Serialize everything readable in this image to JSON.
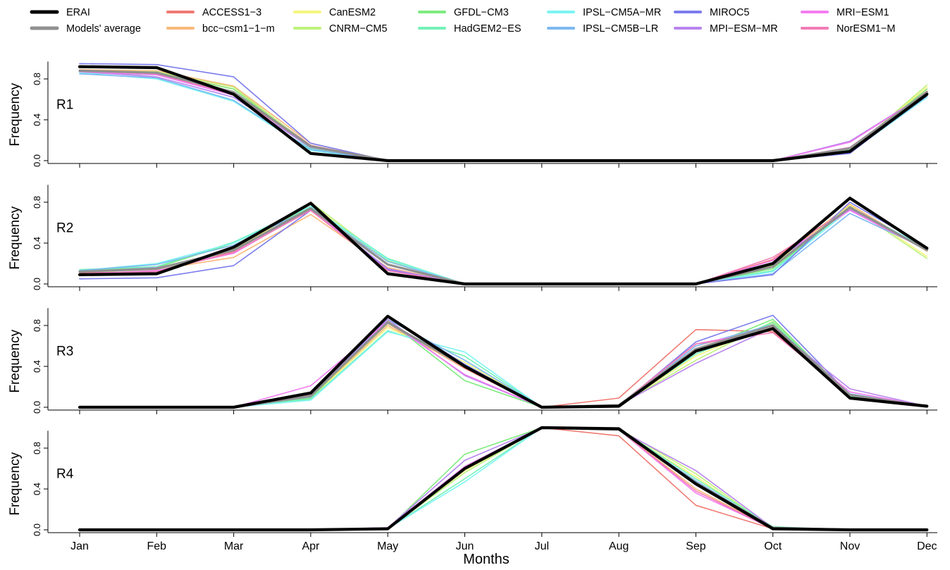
{
  "legend": {
    "items": [
      {
        "name": "ERAI",
        "color": "#000000"
      },
      {
        "name": "Models' average",
        "color": "#909090"
      },
      {
        "name": "ACCESS1−3",
        "color": "#F07A72"
      },
      {
        "name": "bcc−csm1−1−m",
        "color": "#F8B87A"
      },
      {
        "name": "CanESM2",
        "color": "#F6F67E"
      },
      {
        "name": "CNRM−CM5",
        "color": "#BEF27A"
      },
      {
        "name": "GFDL−CM3",
        "color": "#7EEB7E"
      },
      {
        "name": "HadGEM2−ES",
        "color": "#74F2B6"
      },
      {
        "name": "IPSL−CM5A−MR",
        "color": "#7EF4F4"
      },
      {
        "name": "IPSL−CM5B−LR",
        "color": "#7CB8F0"
      },
      {
        "name": "MIROC5",
        "color": "#7C7CEE"
      },
      {
        "name": "MPI−ESM−MR",
        "color": "#B884EE"
      },
      {
        "name": "MRI−ESM1",
        "color": "#F47CF2"
      },
      {
        "name": "NorESM1−M",
        "color": "#F27CB6"
      }
    ]
  },
  "chart_data": {
    "type": "line",
    "xlabel": "Months",
    "ylabel": "Frequency",
    "categories": [
      "Jan",
      "Feb",
      "Mar",
      "Apr",
      "May",
      "Jun",
      "Jul",
      "Aug",
      "Sep",
      "Oct",
      "Nov",
      "Dec"
    ],
    "ylim": [
      0,
      1
    ],
    "yticks": [
      "0.0",
      "0.4",
      "0.8"
    ],
    "grid": false,
    "legend_position": "top",
    "panels": [
      {
        "label": "R1",
        "series": [
          {
            "name": "ACCESS1−3",
            "values": [
              0.88,
              0.87,
              0.7,
              0.15,
              0,
              0,
              0,
              0,
              0,
              0,
              0.12,
              0.68
            ]
          },
          {
            "name": "bcc−csm1−1−m",
            "values": [
              0.89,
              0.88,
              0.73,
              0.17,
              0,
              0,
              0,
              0,
              0,
              0,
              0.11,
              0.7
            ]
          },
          {
            "name": "CanESM2",
            "values": [
              0.87,
              0.86,
              0.7,
              0.14,
              0,
              0,
              0,
              0,
              0,
              0,
              0.1,
              0.72
            ]
          },
          {
            "name": "CNRM−CM5",
            "values": [
              0.88,
              0.87,
              0.72,
              0.14,
              0,
              0,
              0,
              0,
              0,
              0,
              0.09,
              0.74
            ]
          },
          {
            "name": "GFDL−CM3",
            "values": [
              0.87,
              0.86,
              0.7,
              0.13,
              0,
              0,
              0,
              0,
              0,
              0,
              0.1,
              0.7
            ]
          },
          {
            "name": "HadGEM2−ES",
            "values": [
              0.86,
              0.84,
              0.66,
              0.12,
              0,
              0,
              0,
              0,
              0,
              0,
              0.11,
              0.66
            ]
          },
          {
            "name": "IPSL−CM5A−MR",
            "values": [
              0.86,
              0.8,
              0.58,
              0.1,
              0,
              0,
              0,
              0,
              0,
              0,
              0.08,
              0.62
            ]
          },
          {
            "name": "IPSL−CM5B−LR",
            "values": [
              0.85,
              0.81,
              0.59,
              0.11,
              0,
              0,
              0,
              0,
              0,
              0,
              0.08,
              0.63
            ]
          },
          {
            "name": "MIROC5",
            "values": [
              0.95,
              0.94,
              0.82,
              0.17,
              0,
              0,
              0,
              0,
              0,
              0,
              0.07,
              0.65
            ]
          },
          {
            "name": "MPI−ESM−MR",
            "values": [
              0.87,
              0.82,
              0.62,
              0.13,
              0,
              0,
              0,
              0,
              0,
              0,
              0.19,
              0.66
            ]
          },
          {
            "name": "MRI−ESM1",
            "values": [
              0.87,
              0.84,
              0.64,
              0.14,
              0,
              0,
              0,
              0,
              0,
              0,
              0.18,
              0.66
            ]
          },
          {
            "name": "NorESM1−M",
            "values": [
              0.88,
              0.85,
              0.65,
              0.14,
              0,
              0,
              0,
              0,
              0,
              0,
              0.13,
              0.67
            ]
          },
          {
            "name": "Models' average",
            "values": [
              0.88,
              0.86,
              0.67,
              0.14,
              0,
              0,
              0,
              0,
              0,
              0,
              0.12,
              0.67
            ]
          },
          {
            "name": "ERAI",
            "values": [
              0.92,
              0.91,
              0.65,
              0.07,
              0,
              0,
              0,
              0,
              0,
              0,
              0.09,
              0.65
            ]
          }
        ]
      },
      {
        "label": "R2",
        "series": [
          {
            "name": "ACCESS1−3",
            "values": [
              0.11,
              0.13,
              0.32,
              0.75,
              0.14,
              0,
              0,
              0,
              0,
              0.24,
              0.76,
              0.33
            ]
          },
          {
            "name": "bcc−csm1−1−m",
            "values": [
              0.12,
              0.14,
              0.26,
              0.68,
              0.16,
              0,
              0,
              0,
              0,
              0.2,
              0.78,
              0.32
            ]
          },
          {
            "name": "CanESM2",
            "values": [
              0.1,
              0.12,
              0.33,
              0.78,
              0.22,
              0,
              0,
              0,
              0,
              0.19,
              0.77,
              0.27
            ]
          },
          {
            "name": "CNRM−CM5",
            "values": [
              0.12,
              0.13,
              0.34,
              0.8,
              0.23,
              0,
              0,
              0,
              0,
              0.18,
              0.76,
              0.25
            ]
          },
          {
            "name": "GFDL−CM3",
            "values": [
              0.13,
              0.16,
              0.4,
              0.75,
              0.24,
              0,
              0,
              0,
              0,
              0.15,
              0.74,
              0.33
            ]
          },
          {
            "name": "HadGEM2−ES",
            "values": [
              0.14,
              0.17,
              0.41,
              0.76,
              0.25,
              0,
              0,
              0,
              0,
              0.13,
              0.75,
              0.35
            ]
          },
          {
            "name": "IPSL−CM5A−MR",
            "values": [
              0.13,
              0.2,
              0.4,
              0.76,
              0.24,
              0,
              0,
              0,
              0,
              0.12,
              0.73,
              0.36
            ]
          },
          {
            "name": "IPSL−CM5B−LR",
            "values": [
              0.13,
              0.19,
              0.38,
              0.74,
              0.22,
              0,
              0,
              0,
              0,
              0.1,
              0.69,
              0.34
            ]
          },
          {
            "name": "MIROC5",
            "values": [
              0.05,
              0.06,
              0.18,
              0.72,
              0.14,
              0,
              0,
              0,
              0,
              0.09,
              0.8,
              0.36
            ]
          },
          {
            "name": "MPI−ESM−MR",
            "values": [
              0.12,
              0.16,
              0.3,
              0.74,
              0.15,
              0,
              0,
              0,
              0,
              0.21,
              0.73,
              0.34
            ]
          },
          {
            "name": "MRI−ESM1",
            "values": [
              0.1,
              0.13,
              0.3,
              0.73,
              0.13,
              0,
              0,
              0,
              0,
              0.23,
              0.72,
              0.33
            ]
          },
          {
            "name": "NorESM1−M",
            "values": [
              0.1,
              0.12,
              0.31,
              0.72,
              0.13,
              0,
              0,
              0,
              0,
              0.26,
              0.74,
              0.33
            ]
          },
          {
            "name": "Models' average",
            "values": [
              0.12,
              0.15,
              0.33,
              0.74,
              0.19,
              0,
              0,
              0,
              0,
              0.17,
              0.75,
              0.33
            ]
          },
          {
            "name": "ERAI",
            "values": [
              0.09,
              0.1,
              0.36,
              0.79,
              0.1,
              0,
              0,
              0,
              0,
              0.2,
              0.84,
              0.35
            ]
          }
        ]
      },
      {
        "label": "R3",
        "series": [
          {
            "name": "ACCESS1−3",
            "values": [
              0,
              0,
              0,
              0.12,
              0.82,
              0.38,
              0,
              0.09,
              0.76,
              0.74,
              0.12,
              0.01
            ]
          },
          {
            "name": "bcc−csm1−1−m",
            "values": [
              0,
              0,
              0,
              0.1,
              0.8,
              0.39,
              0,
              0.02,
              0.6,
              0.79,
              0.12,
              0.01
            ]
          },
          {
            "name": "CanESM2",
            "values": [
              0,
              0,
              0,
              0.09,
              0.78,
              0.44,
              0,
              0.02,
              0.5,
              0.82,
              0.11,
              0.01
            ]
          },
          {
            "name": "CNRM−CM5",
            "values": [
              0,
              0,
              0,
              0.1,
              0.82,
              0.42,
              0,
              0.02,
              0.46,
              0.84,
              0.12,
              0.01
            ]
          },
          {
            "name": "GFDL−CM3",
            "values": [
              0,
              0,
              0,
              0.09,
              0.85,
              0.26,
              0,
              0.02,
              0.55,
              0.86,
              0.1,
              0.01
            ]
          },
          {
            "name": "HadGEM2−ES",
            "values": [
              0,
              0,
              0,
              0.08,
              0.75,
              0.5,
              0,
              0.02,
              0.52,
              0.83,
              0.11,
              0.01
            ]
          },
          {
            "name": "IPSL−CM5A−MR",
            "values": [
              0,
              0,
              0,
              0.07,
              0.74,
              0.54,
              0,
              0.02,
              0.54,
              0.8,
              0.13,
              0.01
            ]
          },
          {
            "name": "IPSL−CM5B−LR",
            "values": [
              0,
              0,
              0,
              0.1,
              0.86,
              0.46,
              0,
              0.01,
              0.6,
              0.81,
              0.13,
              0.01
            ]
          },
          {
            "name": "MIROC5",
            "values": [
              0,
              0,
              0,
              0.11,
              0.89,
              0.42,
              0,
              0.01,
              0.64,
              0.9,
              0.12,
              0.01
            ]
          },
          {
            "name": "MPI−ESM−MR",
            "values": [
              0,
              0,
              0,
              0.13,
              0.86,
              0.31,
              0,
              0.02,
              0.43,
              0.78,
              0.18,
              0.01
            ]
          },
          {
            "name": "MRI−ESM1",
            "values": [
              0,
              0,
              0,
              0.21,
              0.84,
              0.32,
              0,
              0.02,
              0.62,
              0.76,
              0.15,
              0.01
            ]
          },
          {
            "name": "NorESM1−M",
            "values": [
              0,
              0,
              0,
              0.12,
              0.83,
              0.4,
              0,
              0.02,
              0.62,
              0.73,
              0.12,
              0.01
            ]
          },
          {
            "name": "Models' average",
            "values": [
              0,
              0,
              0,
              0.11,
              0.83,
              0.4,
              0,
              0.02,
              0.57,
              0.8,
              0.12,
              0.01
            ]
          },
          {
            "name": "ERAI",
            "values": [
              0,
              0,
              0,
              0.14,
              0.89,
              0.4,
              0,
              0.01,
              0.55,
              0.77,
              0.09,
              0.01
            ]
          }
        ]
      },
      {
        "label": "R4",
        "series": [
          {
            "name": "ACCESS1−3",
            "values": [
              0,
              0,
              0,
              0,
              0.01,
              0.62,
              1.0,
              0.92,
              0.24,
              0.01,
              0,
              0
            ]
          },
          {
            "name": "bcc−csm1−1−m",
            "values": [
              0,
              0,
              0,
              0,
              0.01,
              0.6,
              1.0,
              0.98,
              0.4,
              0.01,
              0,
              0
            ]
          },
          {
            "name": "CanESM2",
            "values": [
              0,
              0,
              0,
              0,
              0.01,
              0.58,
              1.0,
              0.98,
              0.52,
              0.01,
              0,
              0
            ]
          },
          {
            "name": "CNRM−CM5",
            "values": [
              0,
              0,
              0,
              0,
              0.01,
              0.56,
              1.0,
              0.99,
              0.55,
              0.01,
              0,
              0
            ]
          },
          {
            "name": "GFDL−CM3",
            "values": [
              0,
              0,
              0,
              0,
              0.01,
              0.74,
              1.0,
              0.99,
              0.47,
              0.02,
              0,
              0
            ]
          },
          {
            "name": "HadGEM2−ES",
            "values": [
              0,
              0,
              0,
              0,
              0.01,
              0.5,
              1.0,
              0.99,
              0.5,
              0.03,
              0,
              0
            ]
          },
          {
            "name": "IPSL−CM5A−MR",
            "values": [
              0,
              0,
              0,
              0,
              0.01,
              0.47,
              1.0,
              0.99,
              0.45,
              0.02,
              0,
              0
            ]
          },
          {
            "name": "IPSL−CM5B−LR",
            "values": [
              0,
              0,
              0,
              0,
              0.01,
              0.6,
              1.0,
              0.98,
              0.48,
              0.02,
              0,
              0
            ]
          },
          {
            "name": "MIROC5",
            "values": [
              0,
              0,
              0,
              0,
              0.02,
              0.62,
              1.0,
              0.99,
              0.44,
              0.01,
              0,
              0
            ]
          },
          {
            "name": "MPI−ESM−MR",
            "values": [
              0,
              0,
              0,
              0,
              0.02,
              0.68,
              1.0,
              0.98,
              0.58,
              0.02,
              0,
              0
            ]
          },
          {
            "name": "MRI−ESM1",
            "values": [
              0,
              0,
              0,
              0,
              0.02,
              0.62,
              1.0,
              0.98,
              0.36,
              0.01,
              0,
              0
            ]
          },
          {
            "name": "NorESM1−M",
            "values": [
              0,
              0,
              0,
              0,
              0.01,
              0.6,
              1.0,
              0.98,
              0.38,
              0.01,
              0,
              0
            ]
          },
          {
            "name": "Models' average",
            "values": [
              0,
              0,
              0,
              0,
              0.01,
              0.6,
              1.0,
              0.98,
              0.46,
              0.02,
              0,
              0
            ]
          },
          {
            "name": "ERAI",
            "values": [
              0,
              0,
              0,
              0,
              0.01,
              0.6,
              1.0,
              0.99,
              0.45,
              0.01,
              0,
              0
            ]
          }
        ]
      }
    ]
  }
}
